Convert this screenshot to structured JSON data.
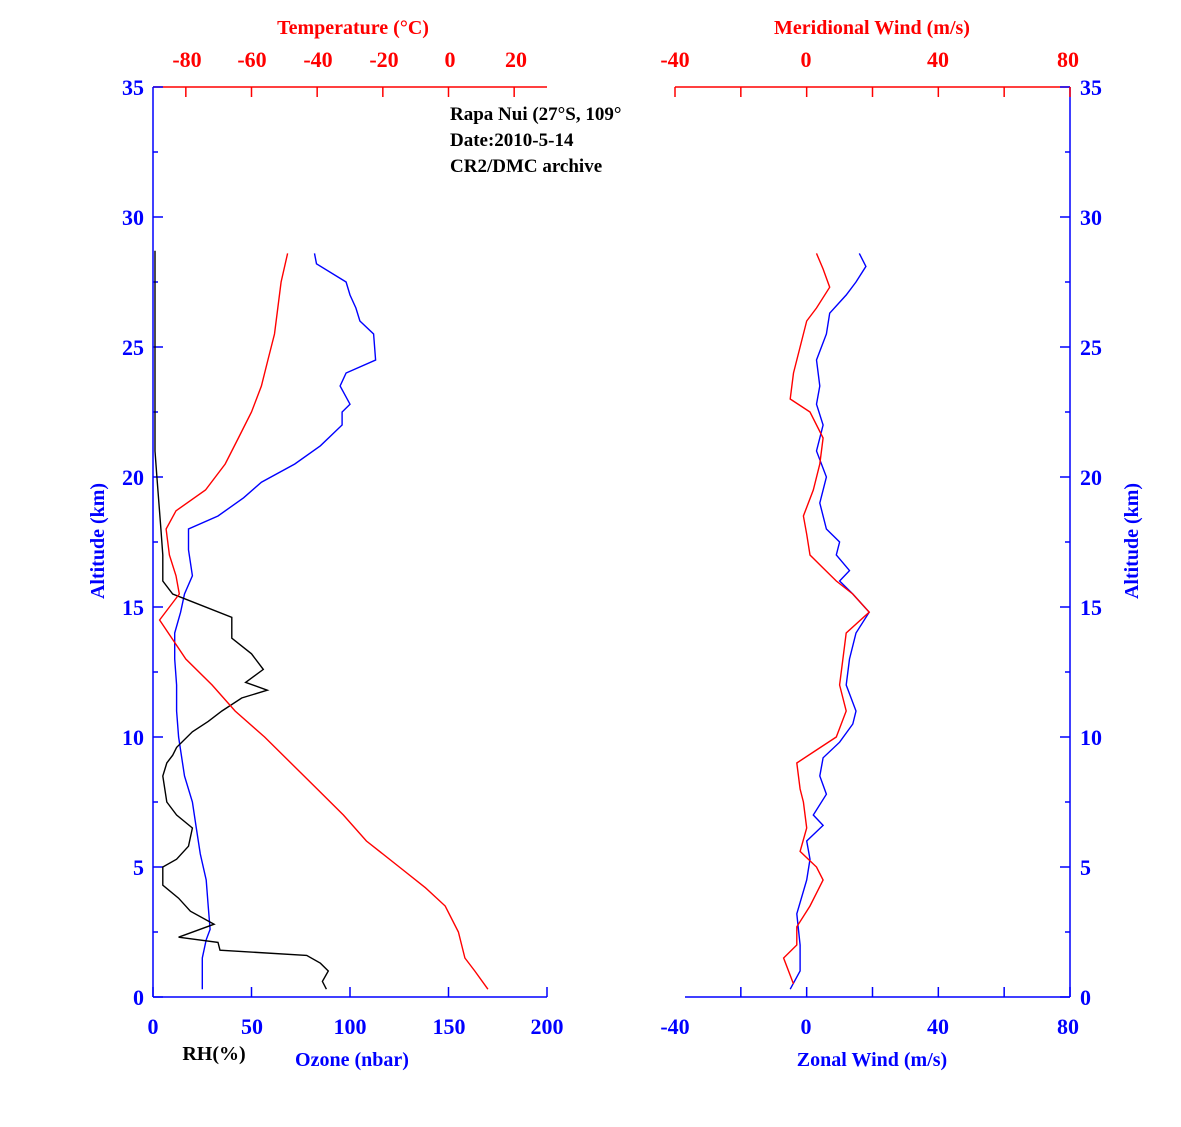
{
  "colors": {
    "blue": "#0000ff",
    "red": "#ff0000",
    "black": "#000000"
  },
  "annotation": {
    "line1": "Rapa Nui (27°S, 109°",
    "line2": "Date:2010-5-14",
    "line3": "CR2/DMC archive"
  },
  "left_panel": {
    "top_axis_title": "Temperature (°C)",
    "bottom_axis_title_rh": "RH(%)",
    "bottom_axis_title_ozone": "Ozone (nbar)",
    "left_axis_title": "Altitude (km)",
    "altitude_ticks": [
      "0",
      "5",
      "10",
      "15",
      "20",
      "25",
      "30",
      "35"
    ],
    "bottom_ticks": [
      "0",
      "50",
      "100",
      "150",
      "200"
    ],
    "top_ticks": [
      "-80",
      "-60",
      "-40",
      "-20",
      "0",
      "20"
    ]
  },
  "right_panel": {
    "top_axis_title": "Meridional Wind (m/s)",
    "bottom_axis_title": "Zonal Wind (m/s)",
    "right_axis_title": "Altitude (km)",
    "altitude_ticks": [
      "0",
      "5",
      "10",
      "15",
      "20",
      "25",
      "30",
      "35"
    ],
    "bottom_ticks": [
      "-40",
      "0",
      "40",
      "80"
    ],
    "top_ticks": [
      "-40",
      "0",
      "40",
      "80"
    ]
  },
  "chart_data": [
    {
      "type": "line",
      "panel": "left",
      "ylabel": "Altitude (km)",
      "ylim": [
        0,
        35
      ],
      "xlabel_bottom": "Ozone (nbar)",
      "xlim_bottom": [
        0,
        200
      ],
      "xlabel_top": "Temperature (°C)",
      "xlim_top": [
        -90,
        30
      ],
      "series": [
        {
          "axis": "bottom",
          "color": "#0000ff",
          "points": [
            [
              25,
              0.3
            ],
            [
              25,
              1.5
            ],
            [
              27,
              2.2
            ],
            [
              29,
              2.6
            ],
            [
              28,
              3.5
            ],
            [
              27,
              4.5
            ],
            [
              24,
              5.5
            ],
            [
              22,
              6.5
            ],
            [
              20,
              7.5
            ],
            [
              16,
              8.5
            ],
            [
              13,
              10
            ],
            [
              12,
              11
            ],
            [
              12,
              12
            ],
            [
              11,
              13
            ],
            [
              11,
              14
            ],
            [
              14,
              14.8
            ],
            [
              16,
              15.5
            ],
            [
              20,
              16.2
            ],
            [
              18,
              17.2
            ],
            [
              18,
              18
            ],
            [
              33,
              18.5
            ],
            [
              46,
              19.2
            ],
            [
              55,
              19.8
            ],
            [
              72,
              20.5
            ],
            [
              85,
              21.2
            ],
            [
              96,
              22
            ],
            [
              96,
              22.5
            ],
            [
              100,
              22.8
            ],
            [
              95,
              23.5
            ],
            [
              98,
              24
            ],
            [
              113,
              24.5
            ],
            [
              112,
              25.5
            ],
            [
              105,
              26
            ],
            [
              103,
              26.5
            ],
            [
              100,
              27
            ],
            [
              98,
              27.5
            ],
            [
              83,
              28.2
            ],
            [
              82,
              28.6
            ]
          ]
        },
        {
          "axis": "bottom",
          "color": "#000000",
          "points": [
            [
              88,
              0.3
            ],
            [
              86,
              0.6
            ],
            [
              89,
              1.0
            ],
            [
              85,
              1.3
            ],
            [
              78,
              1.6
            ],
            [
              34,
              1.8
            ],
            [
              33,
              2.1
            ],
            [
              13,
              2.3
            ],
            [
              31,
              2.8
            ],
            [
              19,
              3.3
            ],
            [
              13,
              3.8
            ],
            [
              5,
              4.3
            ],
            [
              5,
              5
            ],
            [
              12,
              5.3
            ],
            [
              18,
              5.8
            ],
            [
              20,
              6.5
            ],
            [
              12,
              7
            ],
            [
              7,
              7.5
            ],
            [
              5,
              8.5
            ],
            [
              7,
              9
            ],
            [
              10,
              9.3
            ],
            [
              12,
              9.6
            ],
            [
              20,
              10.2
            ],
            [
              28,
              10.6
            ],
            [
              35,
              11
            ],
            [
              45,
              11.5
            ],
            [
              58,
              11.8
            ],
            [
              47,
              12.1
            ],
            [
              56,
              12.6
            ],
            [
              50,
              13.2
            ],
            [
              40,
              13.8
            ],
            [
              40,
              14.6
            ],
            [
              20,
              15.2
            ],
            [
              10,
              15.5
            ],
            [
              5,
              16
            ],
            [
              5,
              17
            ],
            [
              4,
              18
            ],
            [
              3,
              19
            ],
            [
              2,
              20
            ],
            [
              1,
              21
            ],
            [
              1,
              28.7
            ]
          ]
        },
        {
          "axis": "top",
          "color": "#ff0000",
          "points": [
            [
              12,
              0.3
            ],
            [
              8,
              1
            ],
            [
              5,
              1.5
            ],
            [
              3,
              2.5
            ],
            [
              -1,
              3.5
            ],
            [
              -7,
              4.2
            ],
            [
              -15,
              5
            ],
            [
              -25,
              6
            ],
            [
              -32,
              7
            ],
            [
              -40,
              8
            ],
            [
              -48,
              9
            ],
            [
              -56,
              10
            ],
            [
              -65,
              11
            ],
            [
              -72,
              12
            ],
            [
              -80,
              13
            ],
            [
              -88,
              14.5
            ],
            [
              -82,
              15.5
            ],
            [
              -83,
              16.2
            ],
            [
              -85,
              17
            ],
            [
              -86,
              18
            ],
            [
              -83,
              18.7
            ],
            [
              -74,
              19.5
            ],
            [
              -68,
              20.5
            ],
            [
              -64,
              21.5
            ],
            [
              -60,
              22.5
            ],
            [
              -57,
              23.5
            ],
            [
              -55,
              24.5
            ],
            [
              -53,
              25.5
            ],
            [
              -52,
              26.5
            ],
            [
              -51,
              27.5
            ],
            [
              -49,
              28.6
            ]
          ]
        }
      ]
    },
    {
      "type": "line",
      "panel": "right",
      "ylabel": "Altitude (km)",
      "ylim": [
        0,
        35
      ],
      "xlabel_bottom": "Zonal Wind (m/s)",
      "xlim_bottom": [
        -40,
        80
      ],
      "xlabel_top": "Meridional Wind (m/s)",
      "xlim_top": [
        -40,
        80
      ],
      "series": [
        {
          "axis": "bottom",
          "color": "#0000ff",
          "points": [
            [
              -5,
              0.3
            ],
            [
              -2,
              1
            ],
            [
              -2,
              2
            ],
            [
              -3,
              3.2
            ],
            [
              0,
              4.5
            ],
            [
              1,
              5.3
            ],
            [
              0,
              6
            ],
            [
              5,
              6.6
            ],
            [
              2,
              7
            ],
            [
              6,
              7.8
            ],
            [
              4,
              8.5
            ],
            [
              5,
              9.2
            ],
            [
              10,
              9.8
            ],
            [
              14,
              10.5
            ],
            [
              15,
              11
            ],
            [
              12,
              12
            ],
            [
              13,
              13
            ],
            [
              15,
              14
            ],
            [
              19,
              14.8
            ],
            [
              14,
              15.5
            ],
            [
              10,
              16
            ],
            [
              13,
              16.4
            ],
            [
              9,
              17
            ],
            [
              10,
              17.5
            ],
            [
              6,
              18
            ],
            [
              4,
              19
            ],
            [
              6,
              20
            ],
            [
              3,
              21
            ],
            [
              5,
              22
            ],
            [
              3,
              22.8
            ],
            [
              4,
              23.5
            ],
            [
              3,
              24.5
            ],
            [
              6,
              25.5
            ],
            [
              7,
              26.3
            ],
            [
              12,
              27
            ],
            [
              15,
              27.5
            ],
            [
              18,
              28.1
            ],
            [
              16,
              28.6
            ]
          ]
        },
        {
          "axis": "top",
          "color": "#ff0000",
          "points": [
            [
              -4,
              0.5
            ],
            [
              -7,
              1.5
            ],
            [
              -3,
              2
            ],
            [
              -3,
              2.7
            ],
            [
              1,
              3.5
            ],
            [
              5,
              4.5
            ],
            [
              3,
              5
            ],
            [
              -2,
              5.6
            ],
            [
              0,
              6.5
            ],
            [
              -1,
              7.5
            ],
            [
              -2,
              8
            ],
            [
              -3,
              9
            ],
            [
              3,
              9.5
            ],
            [
              9,
              10
            ],
            [
              12,
              11
            ],
            [
              10,
              12
            ],
            [
              11,
              13
            ],
            [
              12,
              14
            ],
            [
              19,
              14.8
            ],
            [
              14,
              15.5
            ],
            [
              9,
              16
            ],
            [
              5,
              16.5
            ],
            [
              1,
              17
            ],
            [
              0,
              17.8
            ],
            [
              -1,
              18.5
            ],
            [
              2,
              19.5
            ],
            [
              4,
              20.5
            ],
            [
              5,
              21.5
            ],
            [
              1,
              22.5
            ],
            [
              -5,
              23
            ],
            [
              -4,
              24
            ],
            [
              -2,
              25
            ],
            [
              0,
              26
            ],
            [
              3,
              26.5
            ],
            [
              7,
              27.3
            ],
            [
              5,
              28
            ],
            [
              3,
              28.6
            ]
          ]
        }
      ]
    }
  ]
}
